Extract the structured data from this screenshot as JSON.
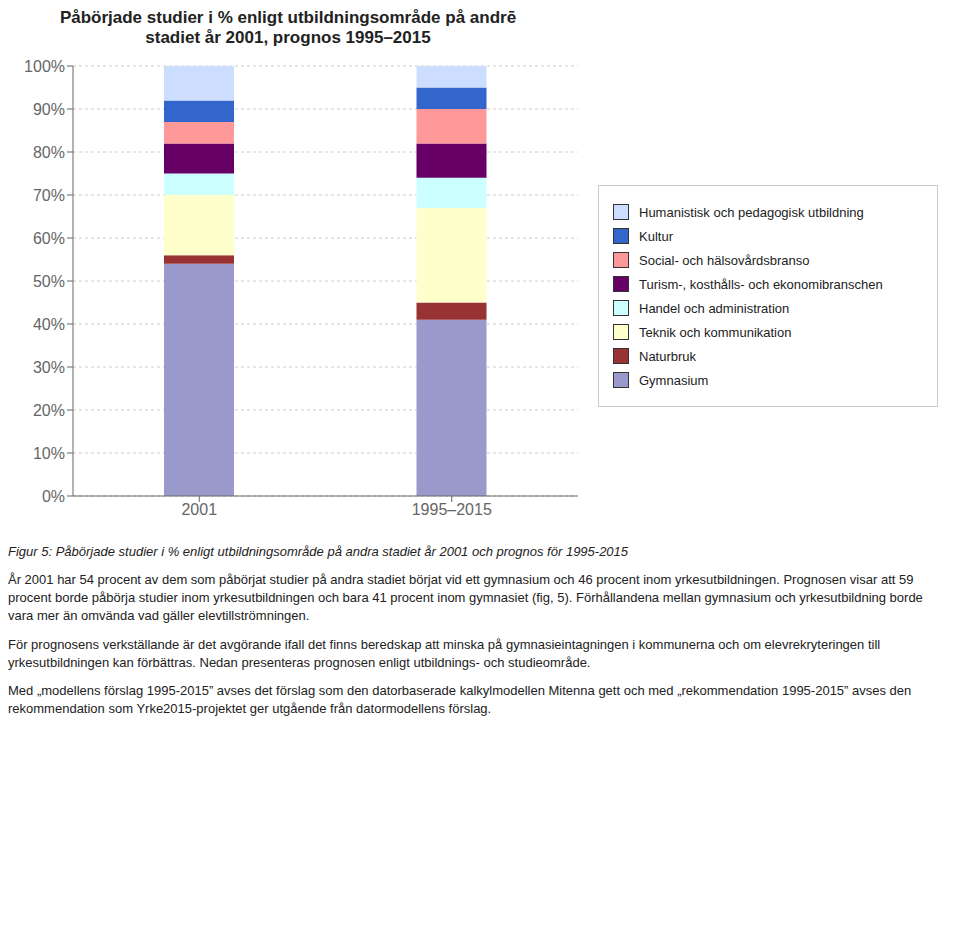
{
  "chart_data": {
    "type": "bar",
    "stacked": true,
    "title": "Påbörjade studier i % enligt utbildningsområde på andrē\nstadiet år 2001, prognos 1995–2015",
    "categories": [
      "2001",
      "1995–2015"
    ],
    "series": [
      {
        "name": "Gymnasium",
        "color": "#9999cc",
        "values": [
          54,
          41
        ]
      },
      {
        "name": "Naturbruk",
        "color": "#993333",
        "values": [
          2,
          4
        ]
      },
      {
        "name": "Teknik och kommunikation",
        "color": "#ffffcc",
        "values": [
          14,
          22
        ]
      },
      {
        "name": "Handel och administration",
        "color": "#ccffff",
        "values": [
          5,
          7
        ]
      },
      {
        "name": "Turism-, kosthålls- och ekonomibranschen",
        "color": "#660066",
        "values": [
          7,
          8
        ]
      },
      {
        "name": "Social- och hälsovårdsbranso",
        "color": "#ff9999",
        "values": [
          5,
          8
        ]
      },
      {
        "name": "Kultur",
        "color": "#3366cc",
        "values": [
          5,
          5
        ]
      },
      {
        "name": "Humanistisk och pedagogisk utbildning",
        "color": "#ccddff",
        "values": [
          8,
          5
        ]
      }
    ],
    "ylim": [
      0,
      100
    ],
    "yticks": [
      {
        "value": 0,
        "label": "0%"
      },
      {
        "value": 10,
        "label": "10%"
      },
      {
        "value": 20,
        "label": "20%"
      },
      {
        "value": 30,
        "label": "30%"
      },
      {
        "value": 40,
        "label": "40%"
      },
      {
        "value": 50,
        "label": "50%"
      },
      {
        "value": 60,
        "label": "60%"
      },
      {
        "value": 70,
        "label": "70%"
      },
      {
        "value": 80,
        "label": "80%"
      },
      {
        "value": 90,
        "label": "90%"
      },
      {
        "value": 100,
        "label": "100%"
      }
    ],
    "grid": true,
    "legend": "right",
    "annotations": [
      "Figur 5: Påbörjade studier i % enligt utbildningsområde på andra stadiet år 2001 och prognos för 1995-2015",
      "År 2001 har 54 procent av dem som påbörjat studier på andra stadiet börjat vid ett gymnasium och 46 procent inom yrkesutbildningen. Prognosen visar att 59 procent borde påbörja studier inom yrkesutbildningen och bara 41 procent inom gymnasiet (fig, 5). Förhållandena mellan gymnasium och yrkesutbildning borde vara mer än omvända vad gäller elevtillströmningen.",
      "För prognosens verkställande är det avgörande ifall det finns beredskap att minska  på gymnasieintagningen i kommunerna och om elevrekryteringen till yrkesutbildningen kan förbättras. Nedan presenteras prognosen enligt utbildnings- och studieområde.",
      "Med „modellens förslag 1995-2015” avses det förslag som den datorbaserade kalkylmodellen Mitenna gett och med „rekommendation 1995-2015” avses den rekommendation som Yrke2015-projektet ger utgående från datormodellens förslag."
    ]
  }
}
